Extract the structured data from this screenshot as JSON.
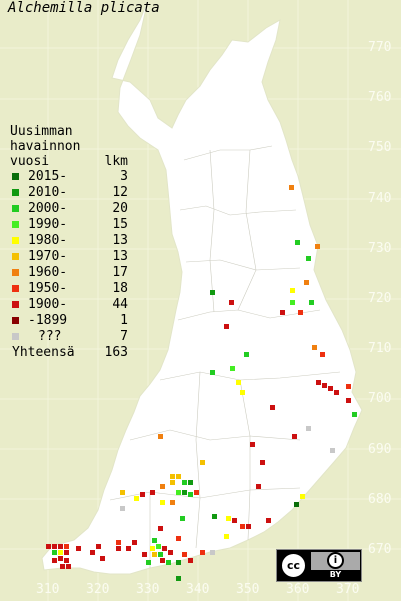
{
  "title": "Alchemilla plicata",
  "legend": {
    "header_line1": "Uusimman",
    "header_line2": "havainnon",
    "header_line3_left": "vuosi",
    "header_line3_right": "lkm",
    "items": [
      {
        "label": "2015-",
        "count": "3",
        "color": "#0a6e0a"
      },
      {
        "label": "2010-",
        "count": "12",
        "color": "#119911"
      },
      {
        "label": "2000-",
        "count": "20",
        "color": "#22cc22"
      },
      {
        "label": "1990-",
        "count": "15",
        "color": "#44ee22"
      },
      {
        "label": "1980-",
        "count": "13",
        "color": "#ffff00"
      },
      {
        "label": "1970-",
        "count": "13",
        "color": "#f4c000"
      },
      {
        "label": "1960-",
        "count": "17",
        "color": "#f08010"
      },
      {
        "label": "1950-",
        "count": "18",
        "color": "#ee3010"
      },
      {
        "label": "1900-",
        "count": "44",
        "color": "#cc1010"
      },
      {
        "label": "-1899",
        "count": "1",
        "color": "#880000"
      },
      {
        "label": "???",
        "count": "7",
        "color": "#c8c8c8"
      }
    ],
    "total_label": "Yhteensä",
    "total_count": "163"
  },
  "y_axis_labels": [
    "770",
    "760",
    "750",
    "740",
    "730",
    "720",
    "710",
    "700",
    "690",
    "680",
    "670"
  ],
  "x_axis_labels": [
    "310",
    "320",
    "330",
    "340",
    "350",
    "360",
    "370"
  ],
  "license": {
    "cc_text": "cc",
    "info_text": "i",
    "by_text": "BY"
  }
}
